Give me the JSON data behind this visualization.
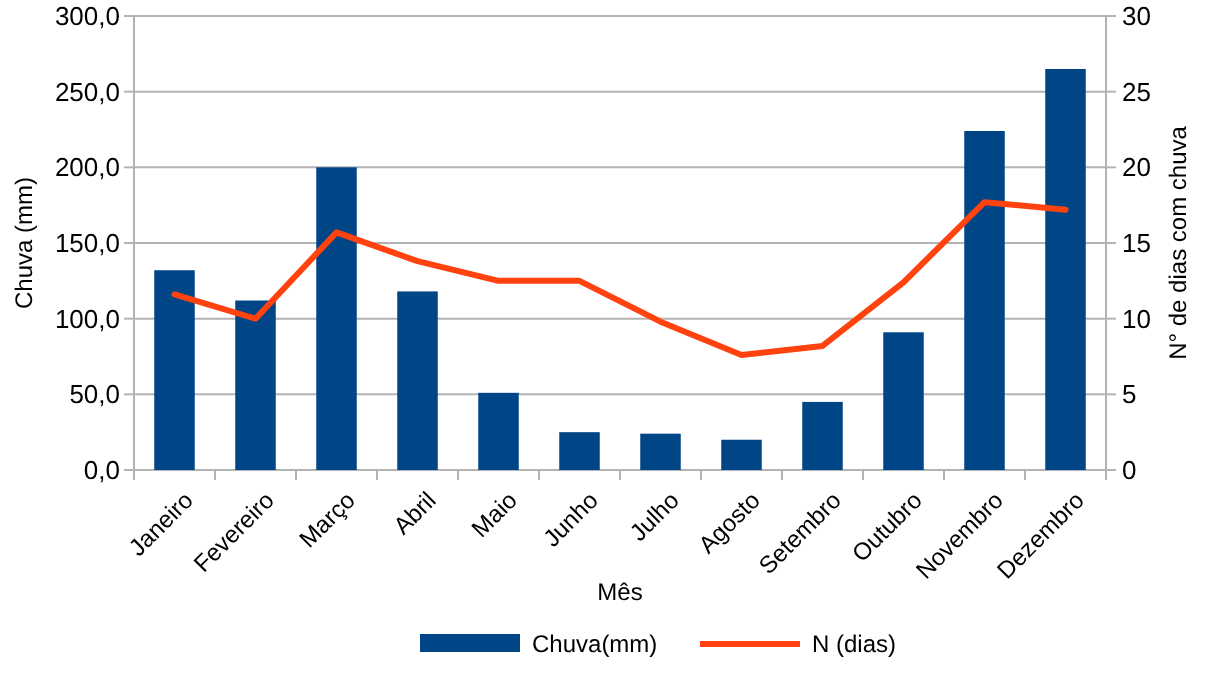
{
  "chart_data": {
    "type": "bar",
    "xlabel": "Mês",
    "ylabel": "Chuva (mm)",
    "y2label": "N° de dias com chuva",
    "categories": [
      "Janeiro",
      "Fevereiro",
      "Março",
      "Abril",
      "Maio",
      "Junho",
      "Julho",
      "Agosto",
      "Setembro",
      "Outubro",
      "Novembro",
      "Dezembro"
    ],
    "series": [
      {
        "name": "Chuva(mm)",
        "color": "#004586",
        "values": [
          132,
          112,
          200,
          118,
          51,
          25,
          24,
          20,
          45,
          91,
          224,
          265
        ]
      },
      {
        "name": "N (dias)",
        "type": "line",
        "axis": "y2",
        "color": "#ff420e",
        "values": [
          11.6,
          10,
          15.7,
          13.8,
          12.5,
          12.5,
          9.8,
          7.6,
          8.2,
          12.4,
          17.7,
          17.2
        ]
      }
    ],
    "ylim": [
      0,
      300
    ],
    "yticks": [
      {
        "value": 0,
        "label": "0,0"
      },
      {
        "value": 50,
        "label": "50,0"
      },
      {
        "value": 100,
        "label": "100,0"
      },
      {
        "value": 150,
        "label": "150,0"
      },
      {
        "value": 200,
        "label": "200,0"
      },
      {
        "value": 250,
        "label": "250,0"
      },
      {
        "value": 300,
        "label": "300,0"
      }
    ],
    "y2lim": [
      0,
      30
    ],
    "y2ticks": [
      0,
      5,
      10,
      15,
      20,
      25,
      30
    ],
    "grid": "y",
    "legend": "bottom",
    "marker": "none",
    "line_style": "solid"
  }
}
